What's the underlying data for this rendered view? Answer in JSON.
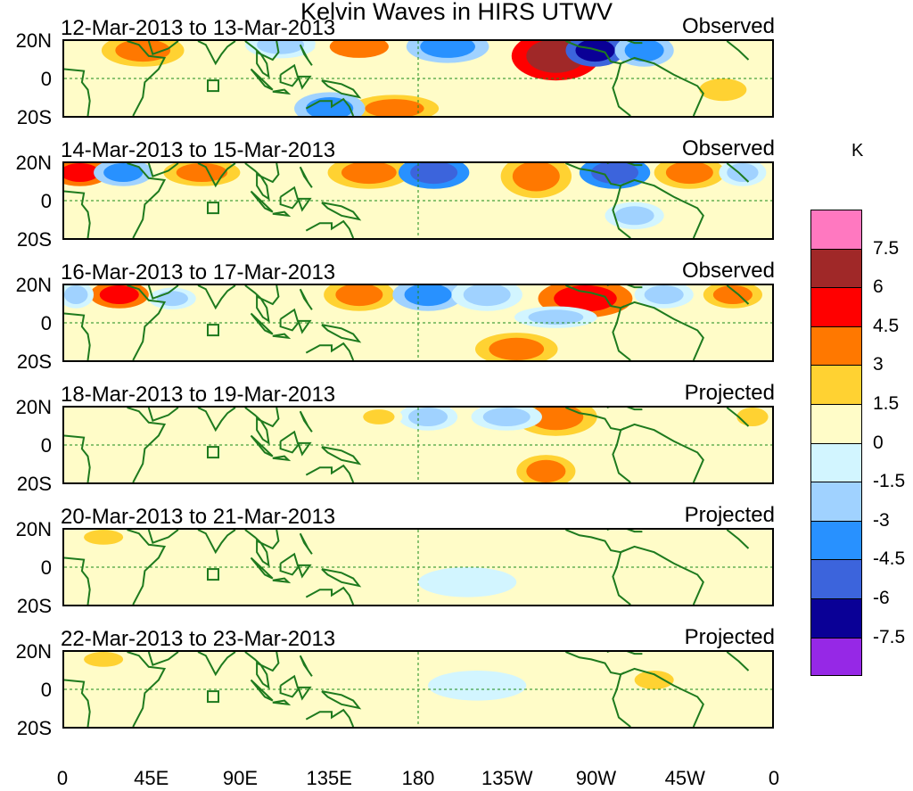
{
  "title": "Kelvin Waves in HIRS UTWV",
  "lat_labels": [
    "20N",
    "0",
    "20S"
  ],
  "lon_labels": [
    "0",
    "45E",
    "90E",
    "135E",
    "180",
    "135W",
    "90W",
    "45W",
    "0"
  ],
  "colorbar": {
    "unit": "K",
    "levels": [
      "7.5",
      "6",
      "4.5",
      "3",
      "1.5",
      "0",
      "-1.5",
      "-3",
      "-4.5",
      "-6",
      "-7.5"
    ],
    "colors": [
      "#ff78c0",
      "#a02828",
      "#ff0000",
      "#ff7800",
      "#ffd232",
      "#fffcc8",
      "#d2f5ff",
      "#a0d2ff",
      "#2891ff",
      "#3c64dc",
      "#0a0096",
      "#9628e6"
    ]
  },
  "panels": [
    {
      "date_range": "12-Mar-2013 to 13-Mar-2013",
      "status": "Observed"
    },
    {
      "date_range": "14-Mar-2013 to 15-Mar-2013",
      "status": "Observed"
    },
    {
      "date_range": "16-Mar-2013 to 17-Mar-2013",
      "status": "Observed"
    },
    {
      "date_range": "18-Mar-2013 to 19-Mar-2013",
      "status": "Projected"
    },
    {
      "date_range": "20-Mar-2013 to 21-Mar-2013",
      "status": "Projected"
    },
    {
      "date_range": "22-Mar-2013 to 23-Mar-2013",
      "status": "Projected"
    }
  ],
  "anomaly_blobs": [
    [
      {
        "lon": 40,
        "lat": 15,
        "rx": 14,
        "ry": 6,
        "v": 4
      },
      {
        "lon": 110,
        "lat": 18,
        "rx": 12,
        "ry": 5,
        "v": -3
      },
      {
        "lon": 150,
        "lat": 17,
        "rx": 15,
        "ry": 6,
        "v": 3
      },
      {
        "lon": 195,
        "lat": 17,
        "rx": 14,
        "ry": 6,
        "v": -4
      },
      {
        "lon": 250,
        "lat": 12,
        "rx": 15,
        "ry": 9,
        "v": 7
      },
      {
        "lon": 270,
        "lat": 15,
        "rx": 10,
        "ry": 6,
        "v": -7
      },
      {
        "lon": 295,
        "lat": 15,
        "rx": 10,
        "ry": 6,
        "v": -4
      },
      {
        "lon": 335,
        "lat": -6,
        "rx": 12,
        "ry": 6,
        "v": 2
      },
      {
        "lon": 168,
        "lat": -16,
        "rx": 15,
        "ry": 5,
        "v": 4
      },
      {
        "lon": 135,
        "lat": -16,
        "rx": 12,
        "ry": 6,
        "v": -4
      }
    ],
    [
      {
        "lon": 8,
        "lat": 15,
        "rx": 10,
        "ry": 5,
        "v": 5
      },
      {
        "lon": 30,
        "lat": 15,
        "rx": 10,
        "ry": 5,
        "v": -4
      },
      {
        "lon": 70,
        "lat": 15,
        "rx": 13,
        "ry": 5,
        "v": 4
      },
      {
        "lon": 155,
        "lat": 15,
        "rx": 14,
        "ry": 6,
        "v": 4
      },
      {
        "lon": 188,
        "lat": 15,
        "rx": 12,
        "ry": 6,
        "v": -5
      },
      {
        "lon": 240,
        "lat": 13,
        "rx": 12,
        "ry": 8,
        "v": 4
      },
      {
        "lon": 280,
        "lat": 15,
        "rx": 12,
        "ry": 6,
        "v": -6
      },
      {
        "lon": 318,
        "lat": 15,
        "rx": 12,
        "ry": 6,
        "v": 4
      },
      {
        "lon": 345,
        "lat": 15,
        "rx": 8,
        "ry": 5,
        "v": -3
      },
      {
        "lon": 290,
        "lat": -8,
        "rx": 10,
        "ry": 5,
        "v": -2
      }
    ],
    [
      {
        "lon": 28,
        "lat": 15,
        "rx": 10,
        "ry": 5,
        "v": 5
      },
      {
        "lon": 6,
        "lat": 15,
        "rx": 6,
        "ry": 5,
        "v": -3
      },
      {
        "lon": 55,
        "lat": 13,
        "rx": 8,
        "ry": 4,
        "v": -2
      },
      {
        "lon": 150,
        "lat": 15,
        "rx": 12,
        "ry": 6,
        "v": 4
      },
      {
        "lon": 185,
        "lat": 15,
        "rx": 12,
        "ry": 6,
        "v": -4
      },
      {
        "lon": 215,
        "lat": 15,
        "rx": 12,
        "ry": 6,
        "v": -3
      },
      {
        "lon": 265,
        "lat": 13,
        "rx": 16,
        "ry": 7,
        "v": 5
      },
      {
        "lon": 305,
        "lat": 15,
        "rx": 10,
        "ry": 5,
        "v": -3
      },
      {
        "lon": 340,
        "lat": 15,
        "rx": 10,
        "ry": 5,
        "v": 4
      },
      {
        "lon": 230,
        "lat": -14,
        "rx": 14,
        "ry": 6,
        "v": 4
      },
      {
        "lon": 250,
        "lat": 3,
        "rx": 14,
        "ry": 4,
        "v": -2
      }
    ],
    [
      {
        "lon": 250,
        "lat": 15,
        "rx": 14,
        "ry": 7,
        "v": 4
      },
      {
        "lon": 225,
        "lat": 15,
        "rx": 12,
        "ry": 5,
        "v": -3
      },
      {
        "lon": 185,
        "lat": 15,
        "rx": 10,
        "ry": 5,
        "v": -2
      },
      {
        "lon": 160,
        "lat": 15,
        "rx": 8,
        "ry": 4,
        "v": 2
      },
      {
        "lon": 245,
        "lat": -14,
        "rx": 10,
        "ry": 6,
        "v": 4
      },
      {
        "lon": 350,
        "lat": 15,
        "rx": 8,
        "ry": 5,
        "v": 2
      },
      {
        "lon": 30,
        "lat": 5,
        "rx": 18,
        "ry": 5,
        "v": 1
      }
    ],
    [
      {
        "lon": 120,
        "lat": 0,
        "rx": 35,
        "ry": 8,
        "v": 1
      },
      {
        "lon": 300,
        "lat": 5,
        "rx": 14,
        "ry": 6,
        "v": 1
      },
      {
        "lon": 20,
        "lat": 16,
        "rx": 10,
        "ry": 4,
        "v": 2
      },
      {
        "lon": 205,
        "lat": -8,
        "rx": 25,
        "ry": 8,
        "v": -1
      }
    ],
    [
      {
        "lon": 110,
        "lat": -2,
        "rx": 30,
        "ry": 8,
        "v": 1
      },
      {
        "lon": 300,
        "lat": 5,
        "rx": 10,
        "ry": 5,
        "v": 2
      },
      {
        "lon": 20,
        "lat": 16,
        "rx": 10,
        "ry": 4,
        "v": 2
      },
      {
        "lon": 210,
        "lat": 2,
        "rx": 25,
        "ry": 8,
        "v": -1
      }
    ]
  ]
}
